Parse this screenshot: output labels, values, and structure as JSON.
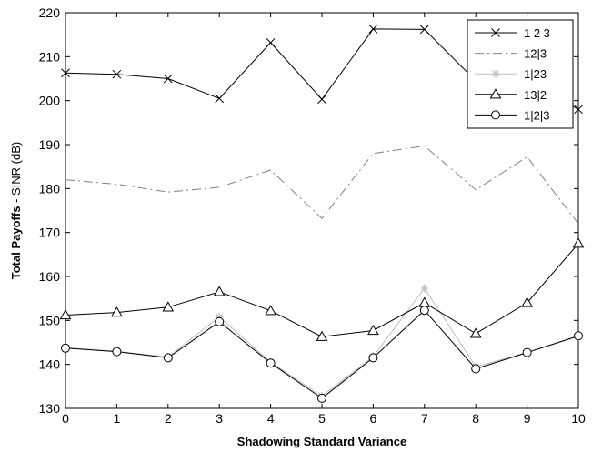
{
  "chart_data": {
    "type": "line",
    "title": "",
    "xlabel": "Shadowing Standard Variance",
    "ylabel_bold": "Total Payoffs",
    "ylabel_rest": " - SINR (dB)",
    "xlim": [
      0,
      10
    ],
    "ylim": [
      130,
      220
    ],
    "x_ticks": [
      0,
      1,
      2,
      3,
      4,
      5,
      6,
      7,
      8,
      9,
      10
    ],
    "y_ticks": [
      130,
      140,
      150,
      160,
      170,
      180,
      190,
      200,
      210,
      220
    ],
    "grid": false,
    "legend_position": "top-right",
    "x": [
      0,
      1,
      2,
      3,
      4,
      5,
      6,
      7,
      8,
      9,
      10
    ],
    "series": [
      {
        "name": "1 2 3",
        "color": "#000000",
        "dash": "solid",
        "marker": "x",
        "values": [
          206.3,
          206.0,
          205.0,
          200.5,
          213.2,
          200.3,
          216.3,
          216.2,
          204.5,
          204.5,
          198.0
        ]
      },
      {
        "name": "12|3",
        "color": "#808080",
        "dash": "dashdot",
        "marker": "none",
        "values": [
          182.0,
          181.0,
          179.2,
          180.3,
          184.2,
          173.2,
          188.0,
          189.7,
          179.7,
          187.2,
          172.0
        ]
      },
      {
        "name": "1|23",
        "color": "#c0c0c0",
        "dash": "solid",
        "marker": "star",
        "values": [
          143.8,
          143.0,
          141.7,
          150.8,
          140.5,
          132.8,
          141.8,
          157.3,
          139.5,
          142.7,
          146.3
        ]
      },
      {
        "name": "13|2",
        "color": "#000000",
        "dash": "solid",
        "marker": "triangle",
        "values": [
          151.2,
          151.8,
          153.0,
          156.5,
          152.2,
          146.3,
          147.7,
          154.0,
          147.0,
          154.0,
          167.5
        ]
      },
      {
        "name": "1|2|3",
        "color": "#000000",
        "dash": "solid",
        "marker": "circle",
        "values": [
          143.7,
          142.9,
          141.5,
          149.7,
          140.3,
          132.3,
          141.5,
          152.3,
          139.0,
          142.7,
          146.5
        ]
      }
    ]
  }
}
